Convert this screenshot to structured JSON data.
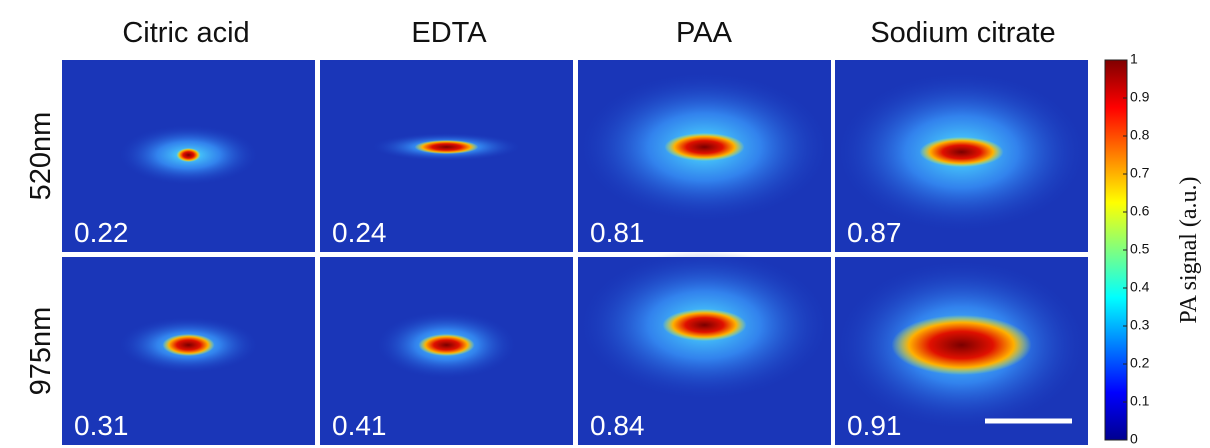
{
  "columns": [
    "Citric acid",
    "EDTA",
    "PAA",
    "Sodium citrate"
  ],
  "rows": [
    {
      "label": "520nm",
      "values": [
        0.22,
        0.24,
        0.81,
        0.87
      ]
    },
    {
      "label": "975nm",
      "values": [
        0.31,
        0.41,
        0.84,
        0.91
      ]
    }
  ],
  "colorbar": {
    "label": "PA signal (a.u.)",
    "ticks": [
      0,
      0.1,
      0.2,
      0.3,
      0.4,
      0.5,
      0.6,
      0.7,
      0.8,
      0.9,
      1
    ]
  }
}
